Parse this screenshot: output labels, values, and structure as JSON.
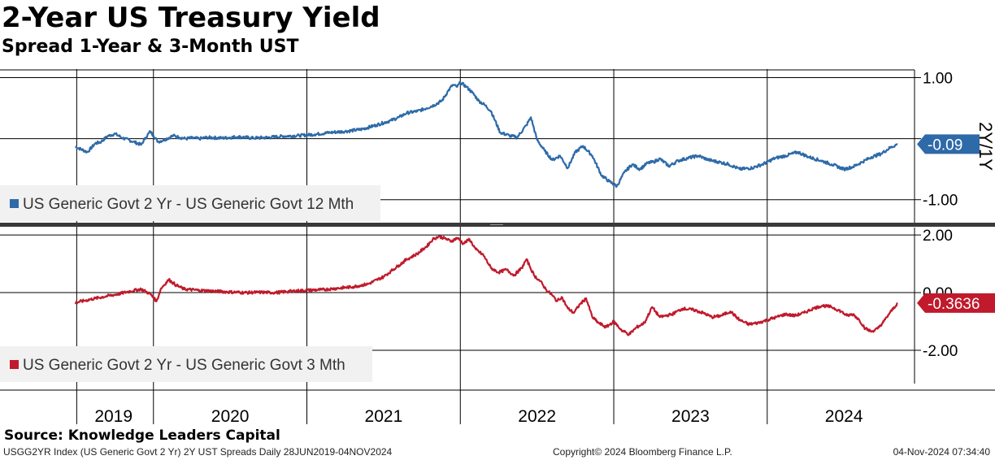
{
  "header": {
    "title": "2-Year US Treasury Yield",
    "subtitle": "Spread 1-Year & 3-Month UST"
  },
  "footer": {
    "source": "Source: Knowledge Leaders Capital",
    "index_info": "USGG2YR Index (US Generic Govt 2 Yr) 2Y UST Spreads  Daily 28JUN2019-04NOV2024",
    "copyright": "Copyright© 2024 Bloomberg Finance L.P.",
    "timestamp": "04-Nov-2024 07:34:40"
  },
  "chart_data": [
    {
      "type": "line",
      "panel": "top",
      "axis_title": "2Y/1Y",
      "ylim": [
        -1.35,
        1.1
      ],
      "yticks": [
        1.0,
        0.0,
        -1.0
      ],
      "ytick_labels": [
        "1.00",
        "",
        "-1.00"
      ],
      "x_start": 2019.49,
      "x_end": 2024.85,
      "legend_label": "US Generic Govt 2 Yr - US Generic Govt 12 Mth",
      "last_value_label": "-0.09",
      "last_value": -0.09,
      "color": "#2e6aa8",
      "series": {
        "name": "US Generic Govt 2 Yr - US Generic Govt 12 Mth",
        "x": [
          2019.49,
          2019.57,
          2019.62,
          2019.66,
          2019.7,
          2019.75,
          2019.8,
          2019.87,
          2019.92,
          2019.95,
          2019.98,
          2020.0,
          2020.03,
          2020.07,
          2020.13,
          2020.17,
          2020.21,
          2020.25,
          2020.3,
          2020.35,
          2020.45,
          2020.55,
          2020.65,
          2020.75,
          2020.85,
          2020.95,
          2021.05,
          2021.15,
          2021.25,
          2021.35,
          2021.45,
          2021.55,
          2021.6,
          2021.65,
          2021.72,
          2021.78,
          2021.83,
          2021.88,
          2021.92,
          2021.95,
          2021.98,
          2022.0,
          2022.04,
          2022.08,
          2022.12,
          2022.16,
          2022.2,
          2022.26,
          2022.32,
          2022.37,
          2022.43,
          2022.46,
          2022.5,
          2022.55,
          2022.6,
          2022.65,
          2022.7,
          2022.75,
          2022.8,
          2022.86,
          2022.92,
          2022.97,
          2023.02,
          2023.07,
          2023.12,
          2023.17,
          2023.22,
          2023.26,
          2023.3,
          2023.36,
          2023.42,
          2023.48,
          2023.55,
          2023.62,
          2023.68,
          2023.75,
          2023.82,
          2023.9,
          2023.97,
          2024.05,
          2024.12,
          2024.2,
          2024.27,
          2024.35,
          2024.42,
          2024.5,
          2024.56,
          2024.62,
          2024.68,
          2024.74,
          2024.8,
          2024.85
        ],
        "values": [
          -0.13,
          -0.22,
          -0.08,
          -0.05,
          0.04,
          0.08,
          0.01,
          -0.05,
          -0.1,
          0.02,
          0.12,
          0.05,
          -0.05,
          -0.02,
          0.05,
          0.02,
          0.0,
          0.01,
          0.0,
          0.02,
          0.01,
          0.03,
          0.01,
          0.02,
          0.04,
          0.05,
          0.07,
          0.1,
          0.12,
          0.15,
          0.22,
          0.3,
          0.35,
          0.42,
          0.45,
          0.5,
          0.55,
          0.62,
          0.78,
          0.88,
          0.85,
          0.92,
          0.85,
          0.75,
          0.62,
          0.55,
          0.45,
          0.1,
          0.05,
          0.02,
          0.22,
          0.35,
          -0.02,
          -0.2,
          -0.35,
          -0.28,
          -0.48,
          -0.22,
          -0.12,
          -0.28,
          -0.6,
          -0.7,
          -0.78,
          -0.55,
          -0.42,
          -0.5,
          -0.4,
          -0.38,
          -0.33,
          -0.45,
          -0.36,
          -0.32,
          -0.28,
          -0.35,
          -0.38,
          -0.42,
          -0.5,
          -0.48,
          -0.42,
          -0.32,
          -0.28,
          -0.22,
          -0.3,
          -0.36,
          -0.42,
          -0.5,
          -0.46,
          -0.38,
          -0.3,
          -0.25,
          -0.15,
          -0.09
        ]
      }
    },
    {
      "type": "line",
      "panel": "bottom",
      "axis_title": "",
      "ylim": [
        -3.1,
        2.2
      ],
      "yticks": [
        2.0,
        0.0,
        -2.0
      ],
      "ytick_labels": [
        "2.00",
        "0.00",
        "-2.00"
      ],
      "x_start": 2019.49,
      "x_end": 2024.85,
      "legend_label": "US Generic Govt 2 Yr - US Generic Govt 3 Mth",
      "last_value_label": "-0.3636",
      "last_value": -0.3636,
      "color": "#c01a2c",
      "series": {
        "name": "US Generic Govt 2 Yr - US Generic Govt 3 Mth",
        "x": [
          2019.49,
          2019.55,
          2019.62,
          2019.7,
          2019.77,
          2019.85,
          2019.92,
          2019.98,
          2020.02,
          2020.05,
          2020.1,
          2020.15,
          2020.2,
          2020.3,
          2020.4,
          2020.5,
          2020.6,
          2020.7,
          2020.8,
          2020.9,
          2021.0,
          2021.1,
          2021.2,
          2021.3,
          2021.4,
          2021.5,
          2021.55,
          2021.6,
          2021.65,
          2021.72,
          2021.78,
          2021.82,
          2021.86,
          2021.9,
          2021.94,
          2021.98,
          2022.02,
          2022.06,
          2022.1,
          2022.15,
          2022.2,
          2022.25,
          2022.3,
          2022.35,
          2022.4,
          2022.43,
          2022.45,
          2022.48,
          2022.52,
          2022.56,
          2022.6,
          2022.63,
          2022.66,
          2022.7,
          2022.74,
          2022.78,
          2022.82,
          2022.86,
          2022.9,
          2022.95,
          2023.0,
          2023.05,
          2023.1,
          2023.15,
          2023.2,
          2023.25,
          2023.3,
          2023.38,
          2023.45,
          2023.52,
          2023.58,
          2023.64,
          2023.7,
          2023.76,
          2023.82,
          2023.88,
          2023.94,
          2024.0,
          2024.06,
          2024.12,
          2024.18,
          2024.24,
          2024.3,
          2024.36,
          2024.42,
          2024.48,
          2024.52,
          2024.56,
          2024.6,
          2024.64,
          2024.68,
          2024.72,
          2024.76,
          2024.8,
          2024.85
        ],
        "values": [
          -0.35,
          -0.28,
          -0.2,
          -0.12,
          -0.05,
          0.05,
          0.12,
          -0.05,
          -0.3,
          0.15,
          0.45,
          0.25,
          0.12,
          0.08,
          0.05,
          0.02,
          0.0,
          0.01,
          0.0,
          0.05,
          0.08,
          0.1,
          0.15,
          0.2,
          0.3,
          0.55,
          0.75,
          0.95,
          1.15,
          1.35,
          1.6,
          1.85,
          1.95,
          1.88,
          1.78,
          1.9,
          1.7,
          1.85,
          1.5,
          1.3,
          0.85,
          0.7,
          0.8,
          0.6,
          0.85,
          1.15,
          0.95,
          0.6,
          0.4,
          0.1,
          -0.1,
          -0.3,
          -0.15,
          -0.55,
          -0.7,
          -0.4,
          -0.2,
          -0.85,
          -1.05,
          -1.2,
          -1.0,
          -1.3,
          -1.45,
          -1.2,
          -1.05,
          -0.5,
          -0.85,
          -0.75,
          -0.55,
          -0.6,
          -0.7,
          -0.85,
          -0.8,
          -0.65,
          -0.95,
          -1.1,
          -1.05,
          -0.95,
          -0.85,
          -0.75,
          -0.8,
          -0.7,
          -0.55,
          -0.45,
          -0.5,
          -0.65,
          -0.8,
          -0.75,
          -0.95,
          -1.25,
          -1.35,
          -1.25,
          -1.0,
          -0.7,
          -0.36
        ]
      }
    }
  ],
  "x_axis": {
    "year_labels": [
      "2019",
      "2020",
      "2021",
      "2022",
      "2023",
      "2024"
    ],
    "label_positions": [
      2019.74,
      2020.5,
      2021.5,
      2022.5,
      2023.5,
      2024.5
    ]
  }
}
